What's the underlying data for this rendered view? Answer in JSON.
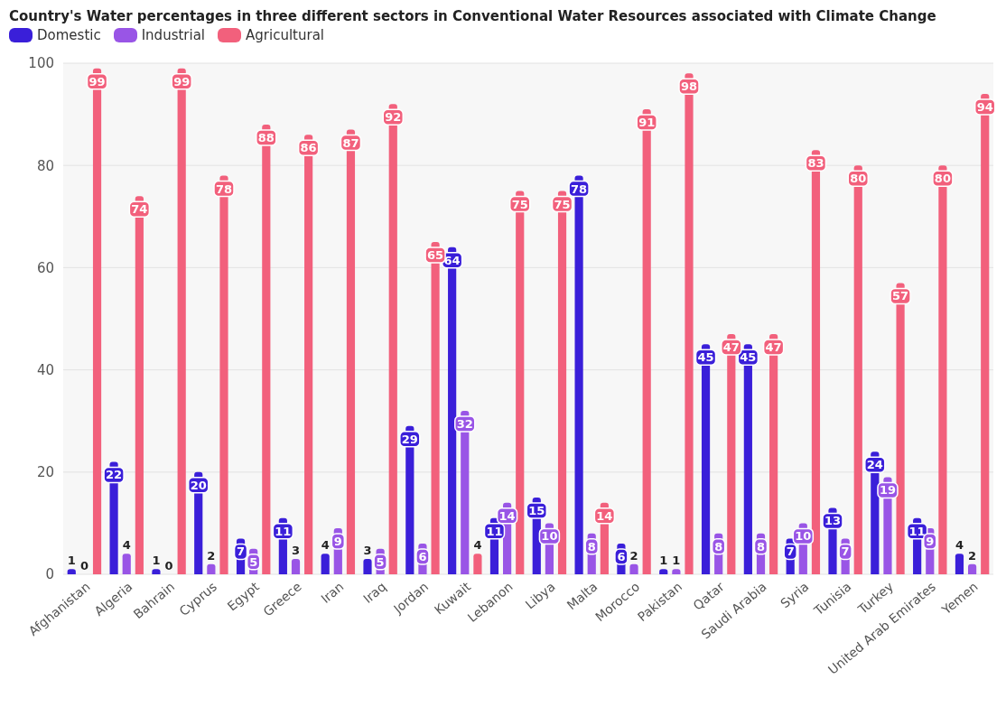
{
  "chart_data": {
    "type": "bar",
    "title": "Country's Water percentages in three different sectors in Conventional Water Resources associated with Climate Change",
    "categories": [
      "Afghanistan",
      "Algeria",
      "Bahrain",
      "Cyprus",
      "Egypt",
      "Greece",
      "Iran",
      "Iraq",
      "Jordan",
      "Kuwait",
      "Lebanon",
      "Libya",
      "Malta",
      "Morocco",
      "Pakistan",
      "Qatar",
      "Saudi Arabia",
      "Syria",
      "Tunisia",
      "Turkey",
      "United Arab Emirates",
      "Yemen"
    ],
    "series": [
      {
        "name": "Domestic",
        "color": "#3a1fd9",
        "values": [
          1,
          22,
          1,
          20,
          7,
          11,
          4,
          3,
          29,
          64,
          11,
          15,
          78,
          6,
          1,
          45,
          45,
          7,
          13,
          24,
          11,
          4
        ]
      },
      {
        "name": "Industrial",
        "color": "#9955e6",
        "values": [
          0,
          4,
          0,
          2,
          5,
          3,
          9,
          5,
          6,
          32,
          14,
          10,
          8,
          2,
          1,
          8,
          8,
          10,
          7,
          19,
          9,
          2
        ]
      },
      {
        "name": "Agricultural",
        "color": "#f2607c",
        "values": [
          99,
          74,
          99,
          78,
          88,
          86,
          87,
          92,
          65,
          4,
          75,
          75,
          14,
          91,
          98,
          47,
          47,
          83,
          80,
          57,
          80,
          94
        ]
      }
    ],
    "ylim": [
      0,
      100
    ],
    "yticks": [
      0,
      20,
      40,
      60,
      80,
      100
    ],
    "grid": "y",
    "legend": "top left",
    "data_labels": true
  }
}
